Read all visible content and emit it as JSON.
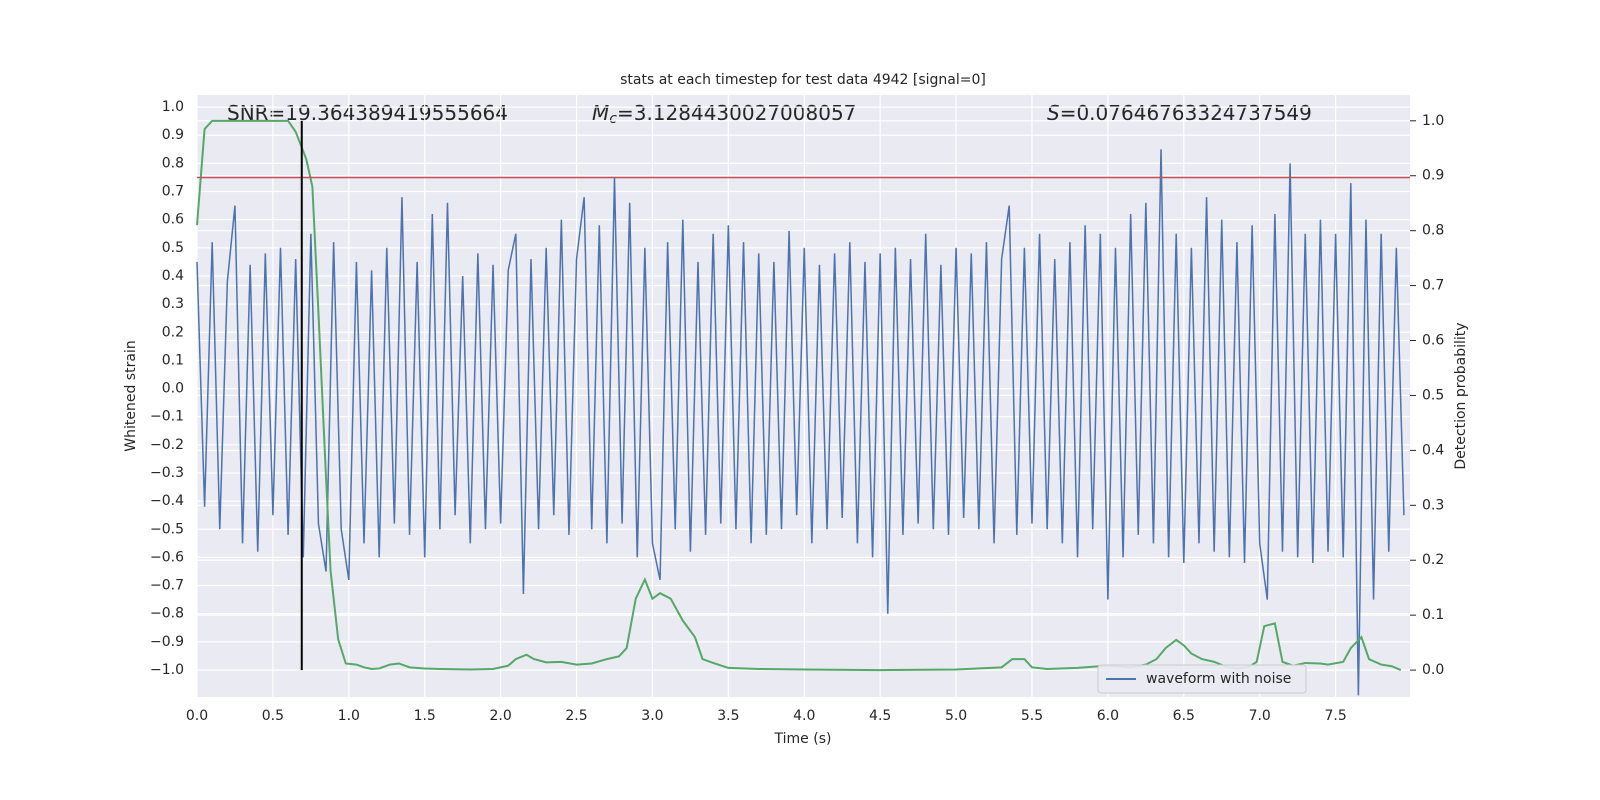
{
  "chart_data": {
    "type": "line",
    "title": "stats at each timestep for test data 4942 [signal=0]",
    "xlabel": "Time (s)",
    "ylabel": "Whitened strain",
    "y2label": "Detection probability",
    "xlim": [
      0,
      7.99
    ],
    "ylim": [
      -1.096,
      1.043
    ],
    "y2lim": [
      -0.049,
      1.047
    ],
    "grid": true,
    "legend": "lower right",
    "xticks": [
      {
        "value": 0,
        "label": "0.0"
      },
      0.5,
      {
        "value": 1,
        "label": "1.0"
      },
      1.5,
      {
        "value": 2,
        "label": "2.0"
      },
      2.5,
      {
        "value": 3,
        "label": "3.0"
      },
      3.5,
      {
        "value": 4,
        "label": "4.0"
      },
      4.5,
      {
        "value": 5,
        "label": "5.0"
      },
      5.5,
      {
        "value": 6,
        "label": "6.0"
      },
      6.5,
      {
        "value": 7,
        "label": "7.0"
      },
      7.5
    ],
    "yticks": [
      {
        "value": -1,
        "label": "−1.0"
      },
      {
        "value": -0.9,
        "label": "−0.9"
      },
      {
        "value": -0.8,
        "label": "−0.8"
      },
      {
        "value": -0.7,
        "label": "−0.7"
      },
      {
        "value": -0.6,
        "label": "−0.6"
      },
      {
        "value": -0.5,
        "label": "−0.5"
      },
      {
        "value": -0.4,
        "label": "−0.4"
      },
      {
        "value": -0.3,
        "label": "−0.3"
      },
      {
        "value": -0.2,
        "label": "−0.2"
      },
      {
        "value": -0.1,
        "label": "−0.1"
      },
      {
        "value": 0,
        "label": "0.0"
      },
      0.1,
      0.2,
      0.3,
      0.4,
      0.5,
      0.6,
      0.7,
      0.8,
      0.9,
      {
        "value": 1,
        "label": "1.0"
      }
    ],
    "y2ticks": [
      {
        "value": 0,
        "label": "0.0"
      },
      0.1,
      0.2,
      0.3,
      0.4,
      0.5,
      0.6,
      0.7,
      0.8,
      0.9,
      {
        "value": 1,
        "label": "1.0"
      }
    ],
    "annotations": [
      {
        "text": "SNR=19.364389419555664"
      },
      {
        "symbol": "M",
        "subscript": "c",
        "text": "=3.1284430027008057"
      },
      {
        "symbol": "S",
        "text": "=0.07646763324737549"
      }
    ],
    "hline": {
      "value": 0.75,
      "color": "#c44e52"
    },
    "vline": {
      "x": 0.69,
      "ymin": 0,
      "ymax": 1,
      "axis": "y2",
      "color": "#000000"
    },
    "series": [
      {
        "name": "waveform with noise",
        "color": "#4c72b0",
        "x": [
          0,
          0.05,
          0.1,
          0.15,
          0.2,
          0.25,
          0.3,
          0.35,
          0.4,
          0.45,
          0.5,
          0.55,
          0.6,
          0.65,
          0.7,
          0.75,
          0.8,
          0.85,
          0.9,
          0.95,
          1,
          1.05,
          1.1,
          1.15,
          1.2,
          1.25,
          1.3,
          1.35,
          1.4,
          1.45,
          1.5,
          1.55,
          1.6,
          1.65,
          1.7,
          1.75,
          1.8,
          1.85,
          1.9,
          1.95,
          2,
          2.05,
          2.1,
          2.15,
          2.2,
          2.25,
          2.3,
          2.35,
          2.4,
          2.45,
          2.5,
          2.55,
          2.6,
          2.65,
          2.7,
          2.75,
          2.8,
          2.85,
          2.9,
          2.95,
          3,
          3.05,
          3.1,
          3.15,
          3.2,
          3.25,
          3.3,
          3.35,
          3.4,
          3.45,
          3.5,
          3.55,
          3.6,
          3.65,
          3.7,
          3.75,
          3.8,
          3.85,
          3.9,
          3.95,
          4,
          4.05,
          4.1,
          4.15,
          4.2,
          4.25,
          4.3,
          4.35,
          4.4,
          4.45,
          4.5,
          4.55,
          4.6,
          4.65,
          4.7,
          4.75,
          4.8,
          4.85,
          4.9,
          4.95,
          5,
          5.05,
          5.1,
          5.15,
          5.2,
          5.25,
          5.3,
          5.35,
          5.4,
          5.45,
          5.5,
          5.55,
          5.6,
          5.65,
          5.7,
          5.75,
          5.8,
          5.85,
          5.9,
          5.95,
          6,
          6.05,
          6.1,
          6.15,
          6.2,
          6.25,
          6.3,
          6.35,
          6.4,
          6.45,
          6.5,
          6.55,
          6.6,
          6.65,
          6.7,
          6.75,
          6.8,
          6.85,
          6.9,
          6.95,
          7,
          7.05,
          7.1,
          7.15,
          7.2,
          7.25,
          7.3,
          7.35,
          7.4,
          7.45,
          7.5,
          7.55,
          7.6,
          7.65,
          7.7,
          7.75,
          7.8,
          7.85,
          7.9,
          7.95
        ],
        "values": [
          0.45,
          -0.42,
          0.52,
          -0.5,
          0.38,
          0.65,
          -0.55,
          0.44,
          -0.58,
          0.48,
          -0.45,
          0.5,
          -0.52,
          0.46,
          -0.6,
          0.55,
          -0.48,
          -0.65,
          0.52,
          -0.5,
          -0.68,
          0.45,
          -0.55,
          0.42,
          -0.6,
          0.5,
          -0.48,
          0.68,
          -0.52,
          0.45,
          -0.6,
          0.62,
          -0.5,
          0.66,
          -0.45,
          0.4,
          -0.55,
          0.48,
          -0.5,
          0.44,
          -0.48,
          0.42,
          0.55,
          -0.73,
          0.46,
          -0.5,
          0.5,
          -0.45,
          0.6,
          -0.52,
          0.46,
          0.68,
          -0.5,
          0.58,
          -0.55,
          0.75,
          -0.48,
          0.66,
          -0.6,
          0.5,
          -0.55,
          -0.68,
          0.52,
          -0.5,
          0.6,
          -0.58,
          0.45,
          -0.52,
          0.55,
          -0.48,
          0.58,
          -0.5,
          0.52,
          -0.55,
          0.48,
          -0.52,
          0.45,
          -0.5,
          0.56,
          -0.45,
          0.5,
          -0.55,
          0.44,
          -0.5,
          0.48,
          -0.46,
          0.52,
          -0.55,
          0.45,
          -0.6,
          0.48,
          -0.8,
          0.5,
          -0.52,
          0.46,
          -0.48,
          0.55,
          -0.5,
          0.44,
          -0.52,
          0.5,
          -0.46,
          0.48,
          -0.5,
          0.52,
          -0.55,
          0.46,
          0.65,
          -0.52,
          0.5,
          -0.48,
          0.55,
          -0.5,
          0.46,
          -0.55,
          0.52,
          -0.6,
          0.58,
          -0.5,
          0.55,
          -0.75,
          0.5,
          -0.6,
          0.62,
          -0.52,
          0.66,
          -0.55,
          0.85,
          -0.6,
          0.55,
          -0.62,
          0.5,
          -0.55,
          0.68,
          -0.58,
          0.6,
          -0.6,
          0.52,
          -0.62,
          0.58,
          -0.55,
          -0.75,
          0.62,
          -0.58,
          0.8,
          -0.6,
          0.55,
          -0.62,
          0.6,
          -0.58,
          0.55,
          -0.6,
          0.73,
          -1.09,
          0.6,
          -0.75,
          0.55,
          -0.58,
          0.5,
          -0.45
        ]
      },
      {
        "color": "#55a868",
        "axis": "y2",
        "x": [
          0,
          0.05,
          0.1,
          0.6,
          0.65,
          0.72,
          0.76,
          0.8,
          0.85,
          0.88,
          0.93,
          0.98,
          1.05,
          1.1,
          1.15,
          1.2,
          1.27,
          1.33,
          1.4,
          1.5,
          1.6,
          1.8,
          1.95,
          2.05,
          2.1,
          2.17,
          2.22,
          2.3,
          2.4,
          2.5,
          2.6,
          2.7,
          2.78,
          2.83,
          2.89,
          2.95,
          3,
          3.05,
          3.12,
          3.2,
          3.28,
          3.33,
          3.4,
          3.5,
          3.7,
          4,
          4.5,
          5,
          5.3,
          5.37,
          5.45,
          5.5,
          5.6,
          5.8,
          6,
          6.15,
          6.25,
          6.32,
          6.38,
          6.45,
          6.5,
          6.55,
          6.62,
          6.7,
          6.78,
          6.85,
          6.93,
          6.98,
          7.03,
          7.1,
          7.15,
          7.22,
          7.3,
          7.4,
          7.45,
          7.55,
          7.6,
          7.67,
          7.72,
          7.8,
          7.87,
          7.93
        ],
        "values": [
          0.81,
          0.985,
          1,
          1,
          0.98,
          0.93,
          0.88,
          0.65,
          0.35,
          0.18,
          0.056,
          0.012,
          0.01,
          0.005,
          0.002,
          0.003,
          0.01,
          0.012,
          0.005,
          0.003,
          0.002,
          0.001,
          0.002,
          0.008,
          0.02,
          0.028,
          0.02,
          0.014,
          0.015,
          0.01,
          0.012,
          0.02,
          0.025,
          0.04,
          0.13,
          0.165,
          0.13,
          0.14,
          0.13,
          0.09,
          0.06,
          0.02,
          0.013,
          0.004,
          0.002,
          0.001,
          0,
          0.001,
          0.005,
          0.02,
          0.02,
          0.005,
          0.002,
          0.004,
          0.008,
          0.005,
          0.01,
          0.02,
          0.04,
          0.055,
          0.045,
          0.03,
          0.02,
          0.015,
          0.006,
          0.003,
          0.006,
          0.015,
          0.08,
          0.085,
          0.015,
          0.008,
          0.013,
          0.012,
          0.01,
          0.015,
          0.04,
          0.06,
          0.02,
          0.01,
          0.007,
          0
        ]
      }
    ]
  }
}
